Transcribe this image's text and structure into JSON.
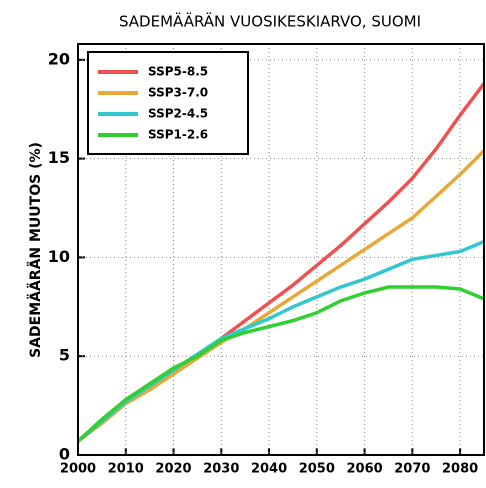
{
  "chart_data": {
    "type": "line",
    "title": "SADEMÄÄRÄN VUOSIKESKIARVO, SUOMI",
    "y_label": "SADEMÄÄRÄN MUUTOS (%)",
    "x": [
      2000,
      2005,
      2010,
      2015,
      2020,
      2025,
      2030,
      2035,
      2040,
      2045,
      2050,
      2055,
      2060,
      2065,
      2070,
      2075,
      2080,
      2085
    ],
    "series": [
      {
        "name": "SSP5-8.5",
        "color": "#f05050",
        "values": [
          0.7,
          1.7,
          2.7,
          3.4,
          4.2,
          5.0,
          5.9,
          6.8,
          7.7,
          8.6,
          9.6,
          10.6,
          11.7,
          12.8,
          14.0,
          15.5,
          17.2,
          18.8
        ]
      },
      {
        "name": "SSP3-7.0",
        "color": "#e8a838",
        "values": [
          0.7,
          1.6,
          2.6,
          3.3,
          4.1,
          4.9,
          5.7,
          6.4,
          7.2,
          8.0,
          8.8,
          9.6,
          10.4,
          11.2,
          12.0,
          13.1,
          14.2,
          15.4
        ]
      },
      {
        "name": "SSP2-4.5",
        "color": "#30c8d0",
        "values": [
          0.7,
          1.7,
          2.7,
          3.5,
          4.3,
          5.1,
          5.9,
          6.4,
          6.9,
          7.5,
          8.0,
          8.5,
          8.9,
          9.4,
          9.9,
          10.1,
          10.3,
          10.8
        ]
      },
      {
        "name": "SSP1-2.6",
        "color": "#30d030",
        "values": [
          0.7,
          1.8,
          2.8,
          3.6,
          4.4,
          5.0,
          5.8,
          6.2,
          6.5,
          6.8,
          7.2,
          7.8,
          8.2,
          8.5,
          8.5,
          8.5,
          8.4,
          7.9
        ]
      }
    ],
    "xlim": [
      2000,
      2085
    ],
    "xticks": [
      2000,
      2010,
      2020,
      2030,
      2040,
      2050,
      2060,
      2070,
      2080
    ],
    "ylim": [
      0,
      20.8
    ],
    "yticks": [
      0,
      5,
      10,
      15,
      20
    ],
    "grid": true,
    "legend": "upper left"
  }
}
